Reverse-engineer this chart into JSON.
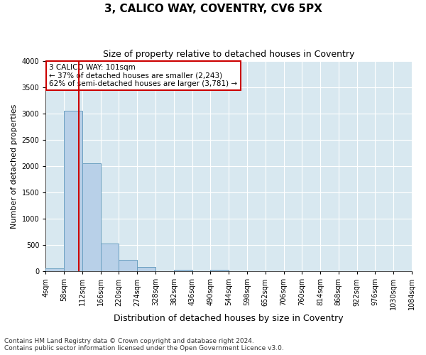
{
  "title": "3, CALICO WAY, COVENTRY, CV6 5PX",
  "subtitle": "Size of property relative to detached houses in Coventry",
  "xlabel": "Distribution of detached houses by size in Coventry",
  "ylabel": "Number of detached properties",
  "footnote1": "Contains HM Land Registry data © Crown copyright and database right 2024.",
  "footnote2": "Contains public sector information licensed under the Open Government Licence v3.0.",
  "annotation_line1": "3 CALICO WAY: 101sqm",
  "annotation_line2": "← 37% of detached houses are smaller (2,243)",
  "annotation_line3": "62% of semi-detached houses are larger (3,781) →",
  "bin_edges": [
    4,
    58,
    112,
    166,
    220,
    274,
    328,
    382,
    436,
    490,
    544,
    598,
    652,
    706,
    760,
    814,
    868,
    922,
    976,
    1030,
    1084
  ],
  "bin_values": [
    50,
    3050,
    2050,
    530,
    220,
    80,
    0,
    30,
    0,
    30,
    0,
    0,
    0,
    0,
    0,
    0,
    0,
    0,
    0,
    0
  ],
  "bar_color": "#b8d0e8",
  "bar_edge_color": "#6a9fc0",
  "vline_color": "#cc0000",
  "vline_x": 101,
  "ylim": [
    0,
    4000
  ],
  "plot_background": "#d8e8f0",
  "annotation_box_color": "white",
  "annotation_box_edge": "#cc0000",
  "grid_color": "#ffffff",
  "title_fontsize": 11,
  "subtitle_fontsize": 9,
  "xlabel_fontsize": 9,
  "ylabel_fontsize": 8,
  "tick_fontsize": 7,
  "annotation_fontsize": 7.5,
  "footnote_fontsize": 6.5
}
